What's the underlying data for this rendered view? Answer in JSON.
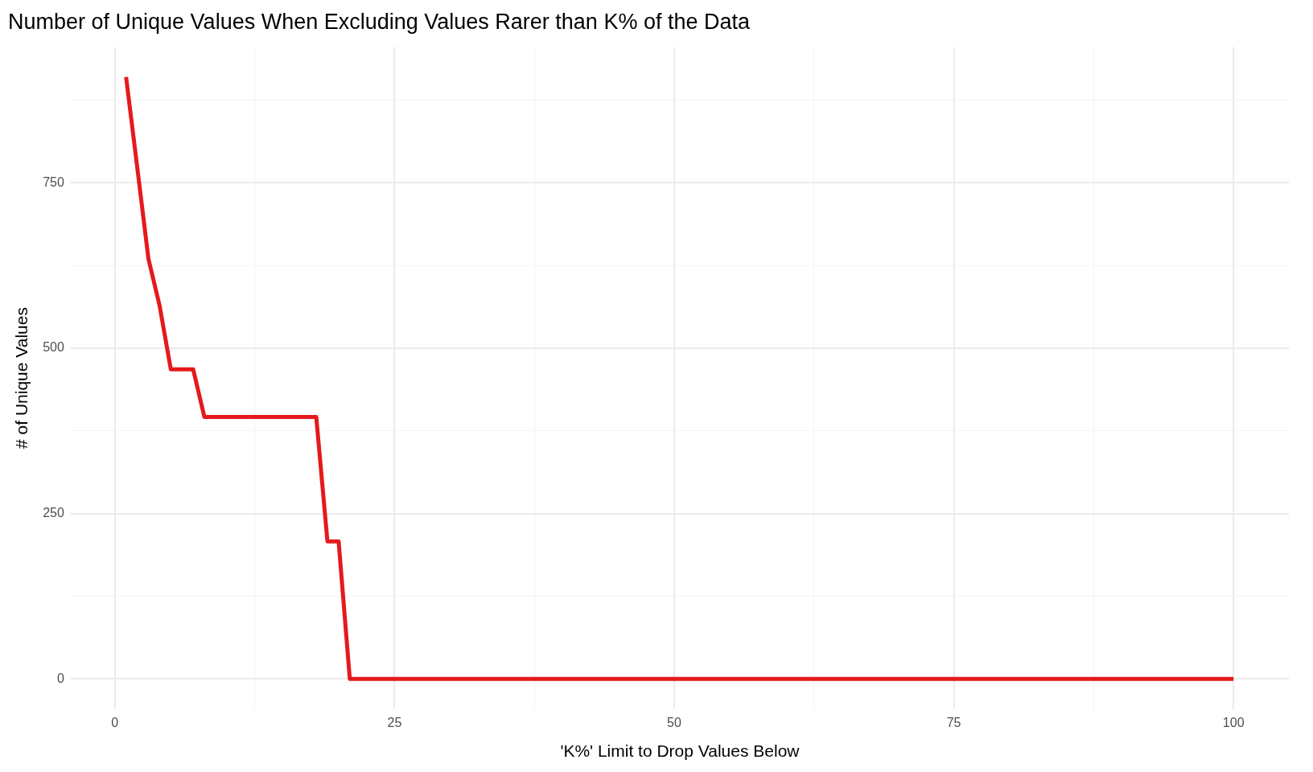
{
  "chart_data": {
    "type": "line",
    "title": "Number of Unique Values When Excluding Values Rarer than K% of the Data",
    "xlabel": "'K%' Limit to Drop Values Below",
    "ylabel": "# of Unique Values",
    "series": [
      {
        "color": "#e41a1c",
        "x": [
          1,
          2,
          3,
          4,
          5,
          6,
          7,
          8,
          9,
          10,
          11,
          12,
          13,
          14,
          15,
          16,
          17,
          18,
          19,
          20,
          21,
          100
        ],
        "values": [
          910,
          773,
          635,
          564,
          468,
          468,
          468,
          396,
          396,
          396,
          396,
          396,
          396,
          396,
          396,
          396,
          396,
          396,
          208,
          208,
          0,
          0
        ]
      }
    ],
    "xlim": [
      -3.95,
      104.95
    ],
    "ylim": [
      -45.5,
      955.5
    ],
    "xticks": [
      0,
      {
        "value": 12.5,
        "label": null
      },
      25,
      {
        "value": 37.5,
        "label": null
      },
      50,
      {
        "value": 62.5,
        "label": null
      },
      75,
      {
        "value": 87.5,
        "label": null
      },
      100
    ],
    "yticks": [
      0,
      {
        "value": 125,
        "label": null
      },
      250,
      {
        "value": 375,
        "label": null
      },
      500,
      {
        "value": 625,
        "label": null
      },
      750,
      {
        "value": 875,
        "label": null
      }
    ],
    "grid": true,
    "legend": false,
    "marker": "none",
    "line_style": "solid"
  }
}
